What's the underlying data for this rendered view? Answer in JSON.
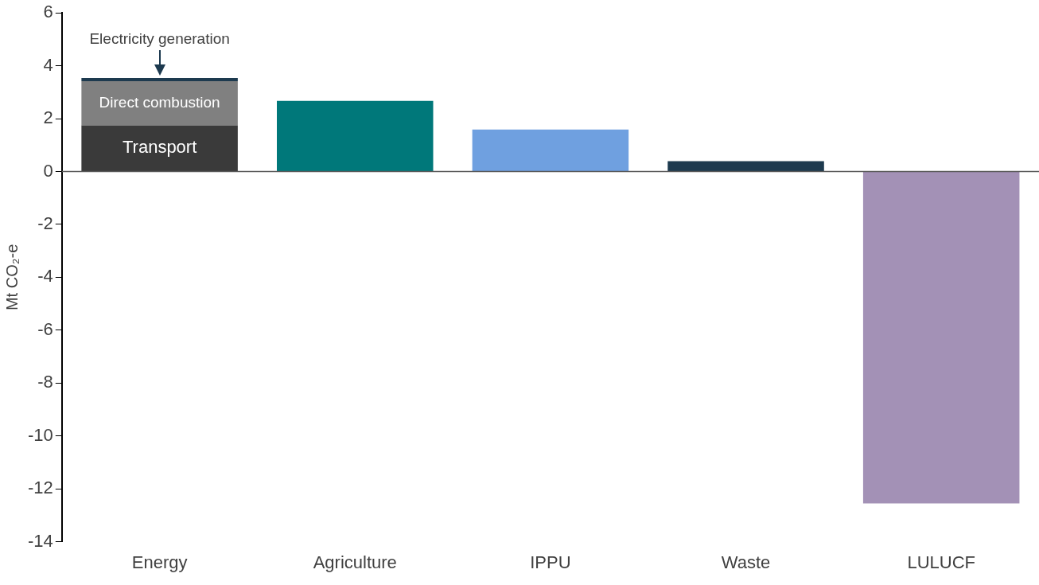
{
  "chart_data": {
    "type": "bar",
    "stacked": true,
    "ylabel": "Mt CO₂-e",
    "categories": [
      "Energy",
      "Agriculture",
      "IPPU",
      "Waste",
      "LULUCF"
    ],
    "series": [
      {
        "name": "Transport",
        "color": "#3a3a3a",
        "values": [
          1.75,
          null,
          null,
          null,
          null
        ]
      },
      {
        "name": "Direct combustion",
        "color": "#808080",
        "values": [
          1.67,
          null,
          null,
          null,
          null
        ]
      },
      {
        "name": "Electricity generation",
        "color": "#1d3a4f",
        "values": [
          0.12,
          null,
          null,
          null,
          null
        ]
      },
      {
        "colors": [
          "#1d3a4f",
          "#00787a",
          "#6fa0e0",
          "#1d3a4f",
          "#a391b6"
        ],
        "values": [
          null,
          2.67,
          1.59,
          0.39,
          -12.55
        ]
      }
    ],
    "ylim": [
      -14,
      6
    ],
    "yticks": [
      -14,
      -12,
      -10,
      -8,
      -6,
      -4,
      -2,
      0,
      2,
      4,
      6
    ],
    "legend": false
  }
}
